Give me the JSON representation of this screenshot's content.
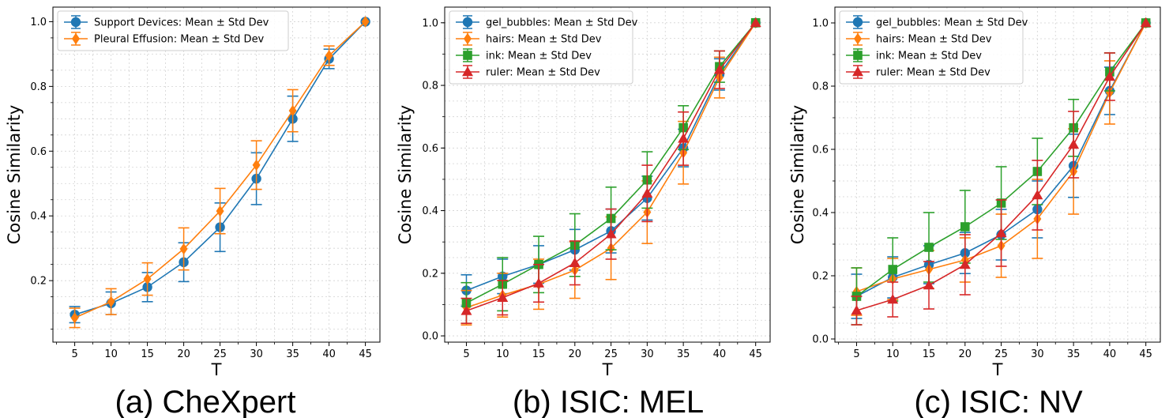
{
  "colors": {
    "blue": "#1f77b4",
    "orange": "#ff7f0e",
    "green": "#2ca02c",
    "red": "#d62728"
  },
  "chart_data": [
    {
      "type": "line",
      "caption": "(a) CheXpert",
      "xlabel": "T",
      "ylabel": "Cosine Similarity",
      "x": [
        5,
        10,
        15,
        20,
        25,
        30,
        35,
        40,
        45
      ],
      "xlim": [
        2,
        47
      ],
      "ylim": [
        0.01,
        1.045
      ],
      "yticks": [
        0.2,
        0.4,
        0.6,
        0.8,
        1.0
      ],
      "ytick_labels": [
        "0.2",
        "0.4",
        "0.6",
        "0.8",
        "1.0"
      ],
      "legend_position": "upper-left",
      "series": [
        {
          "name": "Support Devices: Mean ± Std Dev",
          "color": "#1f77b4",
          "marker": "circle",
          "values": [
            0.095,
            0.13,
            0.18,
            0.257,
            0.365,
            0.515,
            0.7,
            0.885,
            1.0
          ],
          "err": [
            0.025,
            0.035,
            0.045,
            0.06,
            0.075,
            0.08,
            0.07,
            0.03,
            0.0
          ]
        },
        {
          "name": "Pleural Effusion: Mean ± Std Dev",
          "color": "#ff7f0e",
          "marker": "diamond",
          "values": [
            0.085,
            0.135,
            0.205,
            0.298,
            0.415,
            0.557,
            0.725,
            0.895,
            1.0
          ],
          "err": [
            0.03,
            0.04,
            0.05,
            0.065,
            0.07,
            0.075,
            0.065,
            0.03,
            0.0
          ]
        }
      ]
    },
    {
      "type": "line",
      "caption": "(b) ISIC: MEL",
      "xlabel": "T",
      "ylabel": "Cosine Similarity",
      "x": [
        5,
        10,
        15,
        20,
        25,
        30,
        35,
        40,
        45
      ],
      "xlim": [
        2,
        47
      ],
      "ylim": [
        -0.02,
        1.05
      ],
      "yticks": [
        0.0,
        0.2,
        0.4,
        0.6,
        0.8,
        1.0
      ],
      "ytick_labels": [
        "0.0",
        "0.2",
        "0.4",
        "0.6",
        "0.8",
        "1.0"
      ],
      "legend_position": "upper-left",
      "series": [
        {
          "name": "gel_bubbles: Mean ± Std Dev",
          "color": "#1f77b4",
          "marker": "circle",
          "values": [
            0.145,
            0.19,
            0.228,
            0.275,
            0.335,
            0.44,
            0.6,
            0.835,
            1.0
          ],
          "err": [
            0.05,
            0.055,
            0.06,
            0.065,
            0.07,
            0.07,
            0.06,
            0.05,
            0.0
          ]
        },
        {
          "name": "hairs: Mean ± Std Dev",
          "color": "#ff7f0e",
          "marker": "diamond",
          "values": [
            0.09,
            0.13,
            0.165,
            0.21,
            0.28,
            0.395,
            0.585,
            0.825,
            1.0
          ],
          "err": [
            0.055,
            0.07,
            0.08,
            0.09,
            0.1,
            0.1,
            0.1,
            0.065,
            0.0
          ]
        },
        {
          "name": "ink: Mean ± Std Dev",
          "color": "#2ca02c",
          "marker": "square",
          "values": [
            0.105,
            0.165,
            0.228,
            0.29,
            0.375,
            0.498,
            0.665,
            0.86,
            1.0
          ],
          "err": [
            0.065,
            0.085,
            0.09,
            0.1,
            0.1,
            0.09,
            0.07,
            0.05,
            0.0
          ]
        },
        {
          "name": "ruler: Mean ± Std Dev",
          "color": "#d62728",
          "marker": "triangle",
          "values": [
            0.08,
            0.122,
            0.168,
            0.233,
            0.325,
            0.455,
            0.63,
            0.85,
            1.0
          ],
          "err": [
            0.04,
            0.055,
            0.06,
            0.07,
            0.08,
            0.09,
            0.085,
            0.06,
            0.0
          ]
        }
      ]
    },
    {
      "type": "line",
      "caption": "(c) ISIC: NV",
      "xlabel": "T",
      "ylabel": "Cosine Similarity",
      "x": [
        5,
        10,
        15,
        20,
        25,
        30,
        35,
        40,
        45
      ],
      "xlim": [
        2,
        47
      ],
      "ylim": [
        -0.01,
        1.05
      ],
      "yticks": [
        0.0,
        0.2,
        0.4,
        0.6,
        0.8,
        1.0
      ],
      "ytick_labels": [
        "0.0",
        "0.2",
        "0.4",
        "0.6",
        "0.8",
        "1.0"
      ],
      "legend_position": "upper-left",
      "series": [
        {
          "name": "gel_bubbles: Mean ± Std Dev",
          "color": "#1f77b4",
          "marker": "circle",
          "values": [
            0.135,
            0.195,
            0.235,
            0.272,
            0.33,
            0.41,
            0.548,
            0.785,
            1.0
          ],
          "err": [
            0.07,
            0.065,
            0.06,
            0.065,
            0.08,
            0.09,
            0.1,
            0.075,
            0.0
          ]
        },
        {
          "name": "hairs: Mean ± Std Dev",
          "color": "#ff7f0e",
          "marker": "diamond",
          "values": [
            0.15,
            0.19,
            0.22,
            0.25,
            0.295,
            0.38,
            0.53,
            0.78,
            1.0
          ],
          "err": [
            0.075,
            0.065,
            0.06,
            0.07,
            0.1,
            0.125,
            0.135,
            0.1,
            0.0
          ]
        },
        {
          "name": "ink: Mean ± Std Dev",
          "color": "#2ca02c",
          "marker": "square",
          "values": [
            0.135,
            0.22,
            0.29,
            0.355,
            0.43,
            0.53,
            0.668,
            0.845,
            1.0
          ],
          "err": [
            0.09,
            0.1,
            0.11,
            0.115,
            0.115,
            0.105,
            0.09,
            0.06,
            0.0
          ]
        },
        {
          "name": "ruler: Mean ± Std Dev",
          "color": "#d62728",
          "marker": "triangle",
          "values": [
            0.09,
            0.125,
            0.17,
            0.235,
            0.335,
            0.455,
            0.615,
            0.83,
            1.0
          ],
          "err": [
            0.045,
            0.055,
            0.075,
            0.095,
            0.105,
            0.11,
            0.105,
            0.075,
            0.0
          ]
        }
      ]
    }
  ]
}
